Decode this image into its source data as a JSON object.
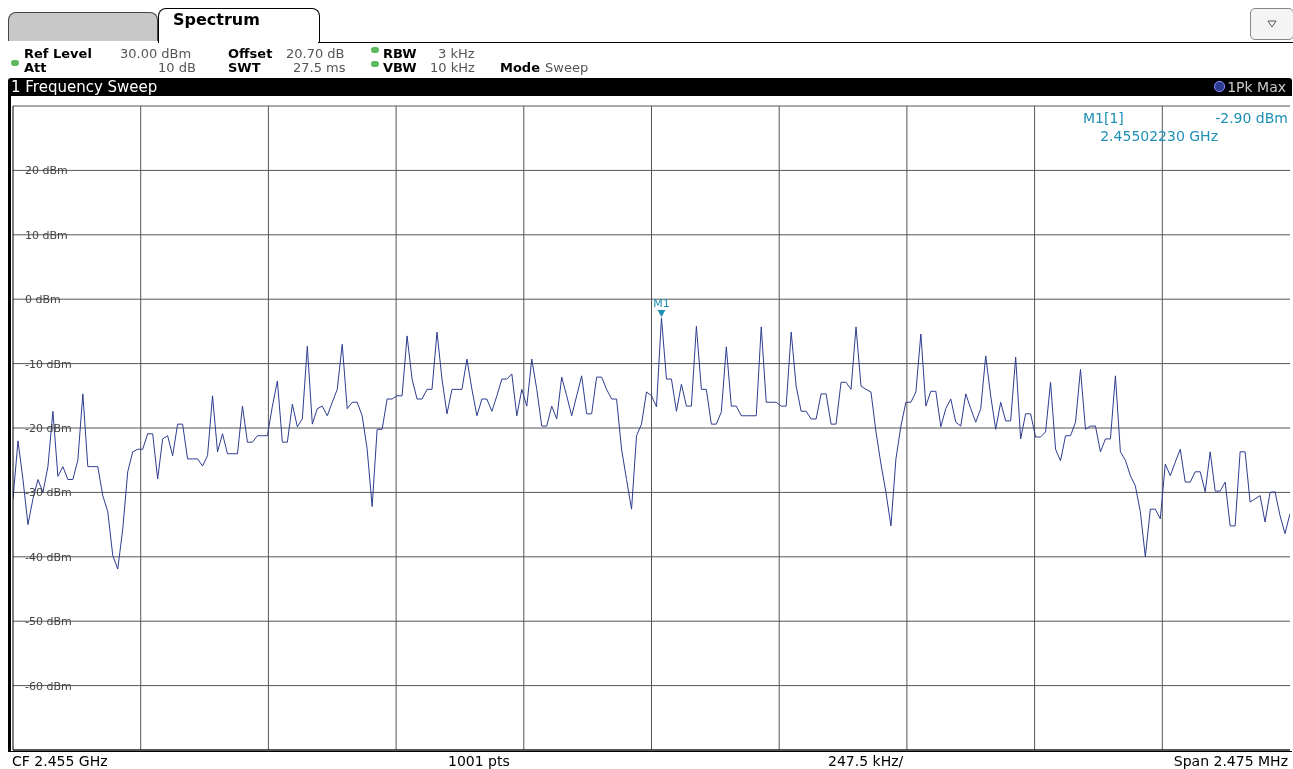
{
  "chart_data": {
    "type": "line",
    "title": "1 Frequency Sweep",
    "annotations": [
      "Spectrum",
      "Ref Level",
      "30.00 dBm",
      "Offset",
      "20.70 dB",
      "RBW",
      "3 kHz",
      "Att",
      "10 dB",
      "SWT",
      "27.5 ms",
      "VBW",
      "10 kHz",
      "Mode",
      "Sweep",
      "M1[1]",
      "-2.90 dBm",
      "2.45502230 GHz",
      "CF 2.455 GHz",
      "1001 pts",
      "247.5 kHz/",
      "Span 2.475 MHz",
      {
        "text": "M1",
        "y": -2.9
      }
    ],
    "categories": [
      null,
      null,
      null,
      null,
      null,
      null,
      null,
      null,
      null,
      null,
      null,
      null,
      null,
      null,
      null,
      null,
      null,
      null,
      null,
      null,
      null,
      null,
      null,
      null,
      null,
      null,
      null,
      null,
      null,
      null,
      null,
      null,
      null,
      null,
      null,
      null,
      null,
      null,
      null,
      null,
      null,
      null,
      null,
      null,
      null,
      null,
      null,
      null,
      null,
      null,
      null,
      null,
      null,
      null,
      null,
      null,
      null,
      null,
      null,
      null,
      null,
      null,
      null,
      null,
      null,
      null,
      null,
      null,
      null,
      null,
      null,
      null,
      null,
      null,
      null,
      null,
      null,
      null,
      null,
      null,
      null,
      null,
      null,
      null,
      null,
      null,
      null,
      null,
      null,
      null,
      null,
      null,
      null,
      null,
      null,
      null,
      null,
      null,
      null,
      null,
      null,
      null,
      null,
      null,
      null,
      null,
      null,
      null,
      null,
      null,
      null,
      null,
      null,
      null,
      null,
      null,
      null,
      null,
      null,
      null,
      null,
      null,
      null,
      null,
      null,
      null,
      null,
      null,
      null,
      null,
      null,
      null,
      null,
      null,
      null,
      null,
      null,
      null,
      null,
      null,
      null,
      null,
      null,
      null,
      null,
      null,
      null,
      null,
      null,
      null,
      null,
      null,
      null,
      null,
      null,
      null,
      null,
      null,
      null,
      null,
      null,
      null,
      null,
      null,
      null,
      null,
      null,
      null,
      null,
      null,
      null,
      null,
      null,
      null,
      null,
      null,
      null,
      null,
      null,
      null,
      null,
      null,
      null,
      null,
      null,
      null,
      null,
      null,
      null,
      null,
      null,
      null,
      null,
      null,
      null,
      null,
      null,
      null,
      null,
      null,
      null,
      null,
      null,
      null,
      null,
      null,
      null,
      null,
      null,
      null,
      null,
      null,
      null,
      null,
      null,
      null,
      null,
      null,
      null,
      null,
      null,
      null,
      null,
      null,
      null,
      null,
      null,
      null,
      null,
      null,
      null,
      null,
      null,
      null,
      null,
      null,
      null,
      null,
      null,
      null,
      null,
      null,
      null,
      null,
      null,
      null,
      null,
      null,
      null,
      null,
      null,
      null,
      null,
      null,
      null,
      null,
      null
    ],
    "series": [
      {
        "name": "1Pk Max",
        "color": "#2e3d8f",
        "values": [
          -31,
          -22,
          -28,
          -35,
          -31,
          -28,
          -30,
          -26,
          -17.4,
          -27.5,
          -26,
          -28,
          -28,
          -25,
          -14.7,
          -26,
          -26,
          -26,
          -30.5,
          -33,
          -39.8,
          -41.9,
          -35.7,
          -26.8,
          -23.7,
          -23.3,
          -23.3,
          -20.9,
          -20.9,
          -27.9,
          -21.7,
          -21.2,
          -24.3,
          -19.4,
          -19.4,
          -24.8,
          -24.8,
          -24.8,
          -25.9,
          -24.3,
          -15,
          -23.7,
          -20.9,
          -24,
          -24,
          -24,
          -16.6,
          -22.2,
          -22.2,
          -21.2,
          -21.2,
          -21.2,
          -16.6,
          -12.7,
          -22.2,
          -22.2,
          -16.3,
          -19.8,
          -18.6,
          -7.3,
          -19.4,
          -17,
          -16.6,
          -18.1,
          -16,
          -14,
          -7,
          -17,
          -16,
          -16,
          -18.1,
          -23.3,
          -32.2,
          -20.2,
          -20.2,
          -15.5,
          -15.5,
          -15,
          -15,
          -5.7,
          -12.4,
          -15.5,
          -15.5,
          -14,
          -14,
          -5.1,
          -12.4,
          -17.8,
          -14,
          -14,
          -14,
          -9.3,
          -14,
          -18.1,
          -15.5,
          -15.5,
          -17.4,
          -15,
          -12.4,
          -12.4,
          -11.6,
          -18.1,
          -14,
          -16.6,
          -9.3,
          -14,
          -19.7,
          -19.7,
          -16.6,
          -18.6,
          -12.1,
          -15,
          -18.1,
          -15,
          -11.9,
          -17.8,
          -17.8,
          -12.1,
          -12.1,
          -14,
          -15.5,
          -15.5,
          -23.3,
          -28,
          -32.6,
          -21.2,
          -19.4,
          -14.4,
          -15,
          -16.7,
          -2.9,
          -12.4,
          -12.4,
          -17.4,
          -13.2,
          -16.6,
          -16.6,
          -4.2,
          -14,
          -14,
          -19.4,
          -19.4,
          -17.5,
          -7.4,
          -16.6,
          -16.6,
          -18.1,
          -18.1,
          -18.1,
          -18.1,
          -4.3,
          -16,
          -16,
          -16,
          -16.6,
          -16.6,
          -5.1,
          -13.5,
          -17.4,
          -17.4,
          -18.6,
          -18.6,
          -14.7,
          -14.7,
          -19.4,
          -19.4,
          -12.9,
          -12.9,
          -14,
          -4.3,
          -13.5,
          -14,
          -14.4,
          -20.6,
          -25.6,
          -30,
          -35.2,
          -24.8,
          -19.7,
          -16,
          -16,
          -14.4,
          -5.4,
          -16.6,
          -14.3,
          -14.3,
          -19.8,
          -17,
          -15.5,
          -19.1,
          -19.7,
          -14.7,
          -17,
          -19.1,
          -17,
          -8.8,
          -15,
          -20.2,
          -16,
          -18.9,
          -18.9,
          -9,
          -21.7,
          -17.8,
          -17.8,
          -21.4,
          -21.4,
          -20.6,
          -12.9,
          -23.3,
          -25.1,
          -21.2,
          -21.2,
          -19.1,
          -10.9,
          -20.2,
          -19.7,
          -19.7,
          -23.7,
          -21.7,
          -21.7,
          -11.9,
          -23.7,
          -25,
          -27.4,
          -29,
          -33,
          -40,
          -32.6,
          -32.6,
          -34.1,
          -25.6,
          -27.4,
          -25.3,
          -23.3,
          -28.4,
          -28.4,
          -26.8,
          -26.8,
          -29.9,
          -23.7,
          -29.8,
          -29.8,
          -28.4,
          -35.2,
          -35.2,
          -23.7,
          -23.7,
          -31.5,
          -31,
          -30.5,
          -34.6,
          -30,
          -29.9,
          -33.6,
          -36.4,
          -33.3
        ]
      }
    ],
    "ylim": [
      -70,
      30
    ],
    "yticks": [
      {
        "value": 20,
        "label": "20 dBm"
      },
      {
        "value": 10,
        "label": "10 dBm"
      },
      {
        "value": 0,
        "label": "0 dBm"
      },
      {
        "value": -10,
        "label": "-10 dBm"
      },
      {
        "value": -20,
        "label": "-20 dBm"
      },
      {
        "value": -30,
        "label": "-30 dBm"
      },
      {
        "value": -40,
        "label": "-40 dBm"
      },
      {
        "value": -50,
        "label": "-50 dBm"
      },
      {
        "value": -60,
        "label": "-60 dBm"
      }
    ],
    "tick_labels": "y",
    "grid": true,
    "legend": "top right",
    "marker": "none",
    "line_style": "solid"
  }
}
